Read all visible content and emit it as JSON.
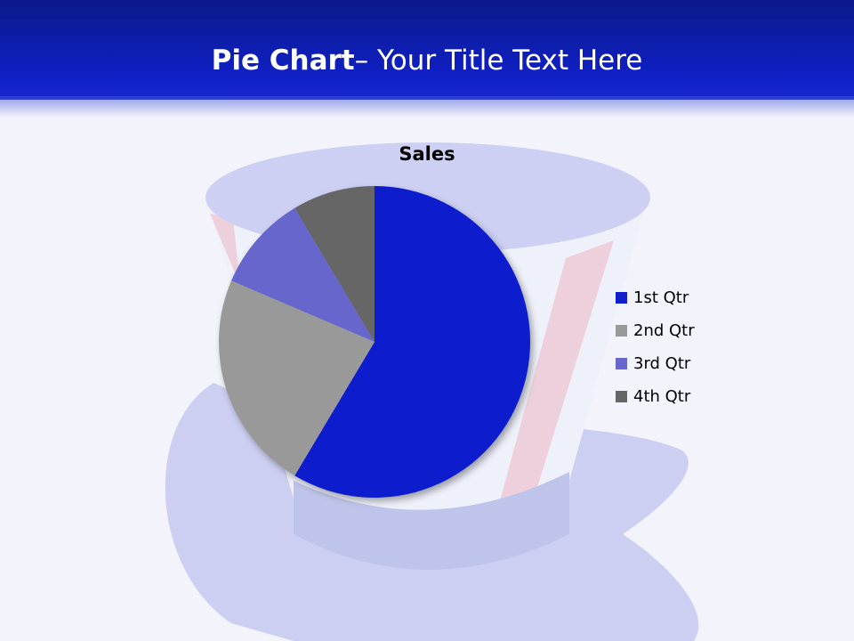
{
  "slide": {
    "title_bold": "Pie Chart",
    "title_rest": "– Your Title Text Here"
  },
  "chart_data": {
    "type": "pie",
    "title": "Sales",
    "categories": [
      "1st Qtr",
      "2nd Qtr",
      "3rd Qtr",
      "4th Qtr"
    ],
    "values": [
      8.2,
      3.2,
      1.4,
      1.2
    ],
    "colors": [
      "#0f1fcc",
      "#999999",
      "#6666cc",
      "#666666"
    ],
    "start_angle_deg": 0,
    "direction": "clockwise",
    "legend_placement": "right"
  },
  "background": {
    "decoration": "uncle-sam-hat",
    "colors": {
      "header": "#1020c8",
      "hat": "#c4c8f0",
      "stripe": "#e8c4d0"
    }
  }
}
